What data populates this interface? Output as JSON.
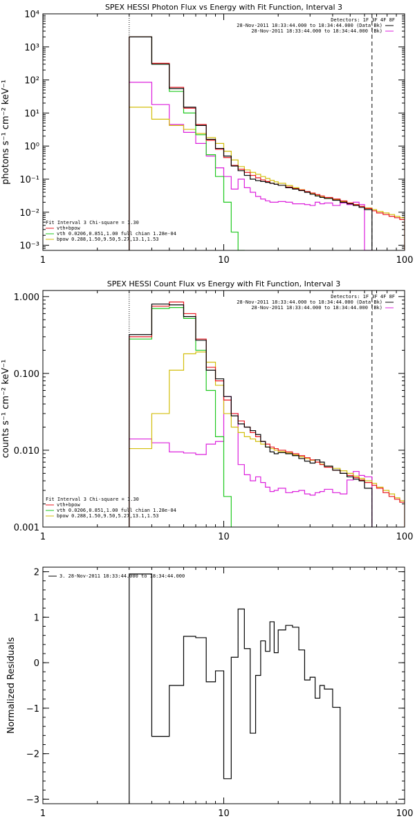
{
  "colors": {
    "data": "#000000",
    "total": "#e8141e",
    "vth": "#1ec81e",
    "bpow": "#d2be0a",
    "bk": "#dc1edc"
  },
  "chart_data": [
    {
      "type": "line",
      "title": "SPEX HESSI Photon Flux vs Energy with Fit Function, Interval 3",
      "xlabel": "",
      "ylabel": "photons s⁻¹ cm⁻² keV⁻¹",
      "x_scale": "log",
      "y_scale": "log",
      "xlim": [
        1,
        100
      ],
      "ylim": [
        0.0007,
        10000
      ],
      "x_ticks": [
        {
          "v": 1,
          "label": "1"
        },
        {
          "v": 10,
          "label": "10"
        },
        {
          "v": 100,
          "label": "100"
        }
      ],
      "y_ticks": [
        {
          "v": 0.001,
          "label": "10⁻³"
        },
        {
          "v": 0.01,
          "label": "10⁻²"
        },
        {
          "v": 0.1,
          "label": "10⁻¹"
        },
        {
          "v": 1,
          "label": "10⁰"
        },
        {
          "v": 10,
          "label": "10¹"
        },
        {
          "v": 100,
          "label": "10²"
        },
        {
          "v": 1000,
          "label": "10³"
        },
        {
          "v": 10000,
          "label": "10⁴"
        }
      ],
      "vlines": [
        {
          "x": 3,
          "style": "dotted"
        },
        {
          "x": 66,
          "style": "dashed"
        }
      ],
      "bin_edges": [
        3,
        4,
        5,
        6,
        7,
        8,
        9,
        10,
        11,
        12,
        13,
        14,
        15,
        16,
        17,
        18,
        19,
        20,
        22,
        24,
        26,
        28,
        30,
        32,
        34,
        36,
        40,
        44,
        48,
        52,
        56,
        60,
        66,
        70,
        76,
        82,
        88,
        94,
        100
      ],
      "series": [
        {
          "key": "data",
          "name": "",
          "values": [
            2000,
            300,
            55,
            15,
            4.2,
            1.6,
            0.85,
            0.5,
            0.25,
            0.18,
            0.13,
            0.1,
            0.09,
            0.085,
            0.08,
            0.075,
            0.07,
            0.065,
            0.055,
            0.05,
            0.045,
            0.04,
            0.035,
            0.031,
            0.028,
            0.026,
            0.023,
            0.02,
            0.018,
            0.016,
            0.014,
            0.012
          ]
        },
        {
          "key": "total",
          "name": "vth+bpow",
          "values": [
            2000,
            320,
            60,
            14,
            4.5,
            1.5,
            0.8,
            0.45,
            0.26,
            0.2,
            0.16,
            0.13,
            0.11,
            0.095,
            0.085,
            0.075,
            0.07,
            0.065,
            0.058,
            0.052,
            0.047,
            0.042,
            0.038,
            0.034,
            0.031,
            0.028,
            0.025,
            0.022,
            0.019,
            0.017,
            0.015,
            0.013,
            0.011,
            0.0095,
            0.0085,
            0.0075,
            0.0068,
            0.006
          ]
        },
        {
          "key": "vth",
          "name": "vth 0.0206,0.851,1.00  full chian 1.28e-04",
          "values": [
            2000,
            300,
            45,
            10,
            2.2,
            0.55,
            0.12,
            0.02,
            0.0025,
            0.0007
          ]
        },
        {
          "key": "bpow",
          "name": "bpow 0.288,1.50,9.50,5.27,13.1,1.53",
          "values": [
            15,
            6.5,
            4.2,
            3.2,
            2.4,
            1.8,
            1.2,
            0.7,
            0.38,
            0.24,
            0.19,
            0.16,
            0.14,
            0.12,
            0.105,
            0.092,
            0.083,
            0.075,
            0.064,
            0.055,
            0.048,
            0.042,
            0.037,
            0.033,
            0.03,
            0.027,
            0.024,
            0.021,
            0.019,
            0.017,
            0.015,
            0.0135,
            0.012,
            0.0105,
            0.0095,
            0.0085,
            0.0075,
            0.0068
          ]
        },
        {
          "key": "bk",
          "name": "",
          "values": [
            85,
            18,
            4.5,
            2.6,
            1.2,
            0.5,
            0.22,
            0.12,
            0.05,
            0.1,
            0.055,
            0.04,
            0.03,
            0.025,
            0.022,
            0.02,
            0.02,
            0.021,
            0.02,
            0.018,
            0.018,
            0.017,
            0.016,
            0.02,
            0.018,
            0.019,
            0.016,
            0.019,
            0.017,
            0.02,
            0.017,
            0.0007
          ]
        }
      ],
      "legend_top": [
        "Detectors: 1F 3F 4F 8F",
        "28-Nov-2011 18:33:44.000 to 18:34:44.000 (Data-Bk)",
        "28-Nov-2011 18:33:44.000 to 18:34:44.000 (Bk)"
      ],
      "legend_bottom": [
        "Fit Interval 3   Chi-square = 1.30",
        "vth+bpow",
        "vth 0.0206,0.851,1.00  full chian 1.28e-04",
        "bpow 0.288,1.50,9.50,5.27,13.1,1.53"
      ]
    },
    {
      "type": "line",
      "title": "SPEX HESSI Count Flux vs Energy with Fit Function, Interval 3",
      "xlabel": "",
      "ylabel": "counts s⁻¹ cm⁻² keV⁻¹",
      "x_scale": "log",
      "y_scale": "log",
      "xlim": [
        1,
        100
      ],
      "ylim": [
        0.001,
        1.2
      ],
      "x_ticks": [
        {
          "v": 1,
          "label": "1"
        },
        {
          "v": 10,
          "label": "10"
        },
        {
          "v": 100,
          "label": "100"
        }
      ],
      "y_ticks": [
        {
          "v": 0.001,
          "label": "0.001"
        },
        {
          "v": 0.01,
          "label": "0.010"
        },
        {
          "v": 0.1,
          "label": "0.100"
        },
        {
          "v": 1,
          "label": "1.000"
        }
      ],
      "vlines": [
        {
          "x": 3,
          "style": "dotted"
        },
        {
          "x": 66,
          "style": "dashed"
        }
      ],
      "bin_edges": [
        3,
        4,
        5,
        6,
        7,
        8,
        9,
        10,
        11,
        12,
        13,
        14,
        15,
        16,
        17,
        18,
        19,
        20,
        22,
        24,
        26,
        28,
        30,
        32,
        34,
        36,
        40,
        44,
        48,
        52,
        56,
        60,
        66,
        70,
        76,
        82,
        88,
        94,
        100
      ],
      "series": [
        {
          "key": "data",
          "name": "",
          "values": [
            0.32,
            0.8,
            0.78,
            0.55,
            0.27,
            0.11,
            0.085,
            0.05,
            0.028,
            0.022,
            0.02,
            0.018,
            0.016,
            0.013,
            0.011,
            0.0095,
            0.009,
            0.0093,
            0.009,
            0.0085,
            0.0078,
            0.0072,
            0.0068,
            0.0075,
            0.007,
            0.0062,
            0.0055,
            0.005,
            0.0045,
            0.0042,
            0.004,
            0.0032
          ]
        },
        {
          "key": "total",
          "name": "vth+bpow",
          "values": [
            0.3,
            0.75,
            0.85,
            0.6,
            0.28,
            0.12,
            0.08,
            0.045,
            0.03,
            0.024,
            0.02,
            0.017,
            0.015,
            0.013,
            0.012,
            0.011,
            0.0105,
            0.01,
            0.0095,
            0.009,
            0.0085,
            0.008,
            0.0075,
            0.007,
            0.0065,
            0.006,
            0.0055,
            0.005,
            0.0047,
            0.0044,
            0.0041,
            0.0038,
            0.0035,
            0.0032,
            0.0028,
            0.0025,
            0.0023,
            0.0021
          ]
        },
        {
          "key": "vth",
          "name": "vth 0.0206,0.851,1.00  full chian 1.28e-04",
          "values": [
            0.28,
            0.7,
            0.72,
            0.52,
            0.2,
            0.06,
            0.015,
            0.0025,
            0.0008
          ]
        },
        {
          "key": "bpow",
          "name": "bpow 0.288,1.50,9.50,5.27,13.1,1.53",
          "values": [
            0.0105,
            0.03,
            0.11,
            0.18,
            0.19,
            0.14,
            0.07,
            0.03,
            0.02,
            0.017,
            0.015,
            0.014,
            0.013,
            0.012,
            0.011,
            0.0105,
            0.01,
            0.0096,
            0.0092,
            0.0087,
            0.0082,
            0.0078,
            0.0074,
            0.007,
            0.0066,
            0.0062,
            0.0058,
            0.0054,
            0.005,
            0.0046,
            0.0043,
            0.004,
            0.0037,
            0.0033,
            0.003,
            0.0027,
            0.0024,
            0.0022
          ]
        },
        {
          "key": "bk",
          "name": "",
          "values": [
            0.014,
            0.0125,
            0.0095,
            0.0092,
            0.0088,
            0.012,
            0.013,
            0.05,
            0.03,
            0.0065,
            0.0048,
            0.004,
            0.0045,
            0.0038,
            0.0033,
            0.0029,
            0.003,
            0.0032,
            0.0028,
            0.0029,
            0.003,
            0.0027,
            0.0026,
            0.0028,
            0.0029,
            0.0031,
            0.0028,
            0.0027,
            0.0041,
            0.0053,
            0.0047,
            0.0045,
            0.0009
          ]
        }
      ],
      "legend_top": [
        "Detectors: 1F 3F 4F 8F",
        "28-Nov-2011 18:33:44.000 to 18:34:44.000 (Data-Bk)",
        "28-Nov-2011 18:33:44.000 to 18:34:44.000 (Bk)"
      ],
      "legend_bottom": [
        "Fit Interval 3   Chi-square = 1.30",
        "vth+bpow",
        "vth 0.0206,0.851,1.00  full chian 1.28e-04",
        "bpow 0.288,1.50,9.50,5.27,13.1,1.53"
      ]
    },
    {
      "type": "line",
      "title": "",
      "xlabel": "",
      "ylabel": "Normalized Residuals",
      "x_scale": "log",
      "y_scale": "linear",
      "xlim": [
        1,
        100
      ],
      "ylim": [
        -3.1,
        2.1
      ],
      "x_ticks": [
        {
          "v": 1,
          "label": "1"
        },
        {
          "v": 10,
          "label": "10"
        },
        {
          "v": 100,
          "label": "100"
        }
      ],
      "y_ticks": [
        {
          "v": -3,
          "label": "−3"
        },
        {
          "v": -2,
          "label": "−2"
        },
        {
          "v": -1,
          "label": "−1"
        },
        {
          "v": 0,
          "label": "0"
        },
        {
          "v": 1,
          "label": "1"
        },
        {
          "v": 2,
          "label": "2"
        }
      ],
      "bin_edges": [
        3,
        4,
        5,
        6,
        7,
        8,
        9,
        10,
        11,
        12,
        13,
        14,
        15,
        16,
        17,
        18,
        19,
        20,
        22,
        24,
        26,
        28,
        30,
        32,
        34,
        36,
        40,
        44,
        48,
        52,
        56,
        60,
        66
      ],
      "series": [
        {
          "key": "data",
          "name": "3. 28-Nov-2011 18:33:44.000 to 18:34:44.000",
          "values": [
            1.95,
            -1.62,
            -0.5,
            0.58,
            0.55,
            -0.42,
            -0.18,
            -2.55,
            0.12,
            1.18,
            0.31,
            -1.55,
            -0.28,
            0.48,
            0.25,
            0.9,
            0.22,
            0.72,
            0.82,
            0.78,
            0.28,
            -0.38,
            -0.32,
            -0.78,
            -0.5,
            -0.58,
            -0.98
          ]
        }
      ],
      "legend_top": [
        "3. 28-Nov-2011 18:33:44.000 to 18:34:44.000"
      ]
    }
  ]
}
